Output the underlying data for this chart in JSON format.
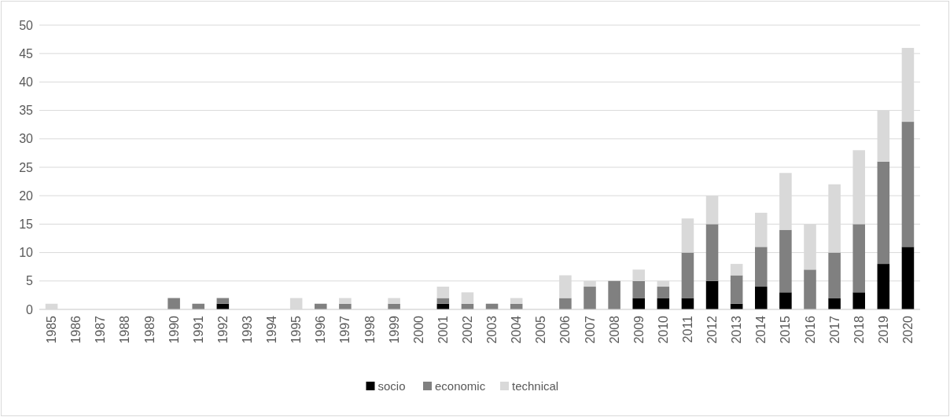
{
  "chart_data": {
    "type": "bar",
    "stacked": true,
    "categories": [
      "1985",
      "1986",
      "1987",
      "1988",
      "1989",
      "1990",
      "1991",
      "1992",
      "1993",
      "1994",
      "1995",
      "1996",
      "1997",
      "1998",
      "1999",
      "2000",
      "2001",
      "2002",
      "2003",
      "2004",
      "2005",
      "2006",
      "2007",
      "2008",
      "2009",
      "2010",
      "2011",
      "2012",
      "2013",
      "2014",
      "2015",
      "2016",
      "2017",
      "2018",
      "2019",
      "2020"
    ],
    "series": [
      {
        "name": "socio",
        "color": "#000000",
        "values": [
          0,
          0,
          0,
          0,
          0,
          0,
          0,
          1,
          0,
          0,
          0,
          0,
          0,
          0,
          0,
          0,
          1,
          0,
          0,
          0,
          0,
          0,
          0,
          0,
          2,
          2,
          2,
          5,
          1,
          4,
          3,
          0,
          2,
          3,
          8,
          11
        ]
      },
      {
        "name": "economic",
        "color": "#808080",
        "values": [
          0,
          0,
          0,
          0,
          0,
          2,
          1,
          1,
          0,
          0,
          0,
          1,
          1,
          0,
          1,
          0,
          1,
          1,
          1,
          1,
          0,
          2,
          4,
          5,
          3,
          2,
          8,
          10,
          5,
          7,
          11,
          7,
          8,
          12,
          18,
          22
        ]
      },
      {
        "name": "technical",
        "color": "#d9d9d9",
        "values": [
          1,
          0,
          0,
          0,
          0,
          0,
          0,
          0,
          0,
          0,
          2,
          0,
          1,
          0,
          1,
          0,
          2,
          2,
          0,
          1,
          0,
          4,
          1,
          0,
          2,
          1,
          6,
          5,
          2,
          6,
          10,
          8,
          12,
          13,
          9,
          13
        ]
      }
    ],
    "ylim": [
      0,
      50
    ],
    "yticks": [
      0,
      5,
      10,
      15,
      20,
      25,
      30,
      35,
      40,
      45,
      50
    ],
    "grid": "y",
    "legend": "bottom"
  }
}
